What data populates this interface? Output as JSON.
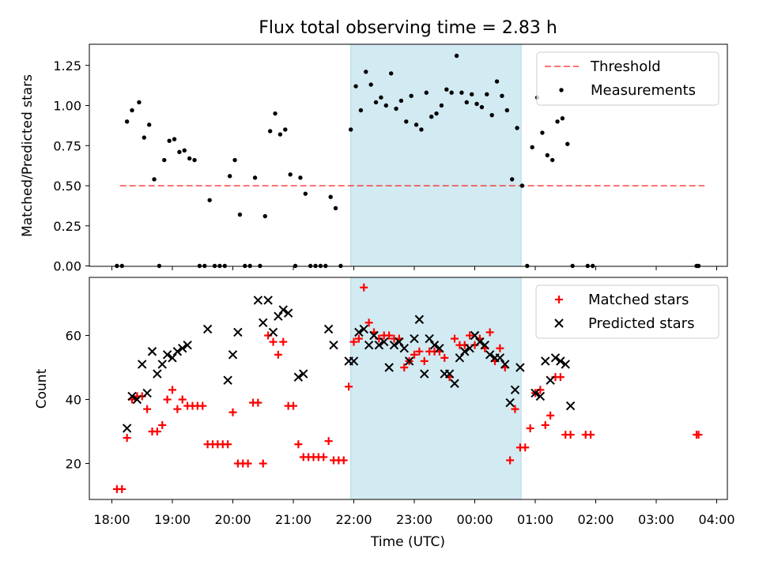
{
  "title": "Flux total observing time = 2.83 h",
  "colors": {
    "shade": "#add8e6",
    "threshold": "#ff0000",
    "measurement": "#000000",
    "matched": "#ff0000",
    "predicted": "#000000"
  },
  "chart_data": [
    {
      "type": "scatter",
      "xlabel": "",
      "ylabel": "Matched/Predicted stars",
      "ylim": [
        0,
        1.38
      ],
      "yticks": [
        "0.00",
        "0.25",
        "0.50",
        "0.75",
        "1.00",
        "1.25"
      ],
      "shaded_region": {
        "start": "21:57",
        "end": "00:46"
      },
      "legend": {
        "position": "top-right",
        "threshold_label": "Threshold",
        "measurements_label": "Measurements"
      },
      "threshold": {
        "value": 0.5,
        "x_start": "18:08",
        "x_end": "03:48"
      },
      "series": [
        {
          "name": "Measurements",
          "points": [
            [
              "18:05",
              0
            ],
            [
              "18:10",
              0
            ],
            [
              "18:15",
              0.9
            ],
            [
              "18:20",
              0.97
            ],
            [
              "18:27",
              1.02
            ],
            [
              "18:32",
              0.8
            ],
            [
              "18:37",
              0.88
            ],
            [
              "18:42",
              0.54
            ],
            [
              "18:47",
              0
            ],
            [
              "18:52",
              0.66
            ],
            [
              "18:57",
              0.78
            ],
            [
              "19:02",
              0.79
            ],
            [
              "19:07",
              0.71
            ],
            [
              "19:12",
              0.72
            ],
            [
              "19:17",
              0.67
            ],
            [
              "19:22",
              0.66
            ],
            [
              "19:27",
              0
            ],
            [
              "19:32",
              0
            ],
            [
              "19:37",
              0.41
            ],
            [
              "19:42",
              0
            ],
            [
              "19:47",
              0
            ],
            [
              "19:52",
              0
            ],
            [
              "19:57",
              0.56
            ],
            [
              "20:02",
              0.66
            ],
            [
              "20:07",
              0.32
            ],
            [
              "20:12",
              0
            ],
            [
              "20:17",
              0
            ],
            [
              "20:22",
              0.55
            ],
            [
              "20:27",
              0
            ],
            [
              "20:32",
              0.31
            ],
            [
              "20:37",
              0.84
            ],
            [
              "20:42",
              0.95
            ],
            [
              "20:47",
              0.82
            ],
            [
              "20:52",
              0.85
            ],
            [
              "20:57",
              0.57
            ],
            [
              "21:02",
              0
            ],
            [
              "21:07",
              0.55
            ],
            [
              "21:12",
              0.45
            ],
            [
              "21:17",
              0
            ],
            [
              "21:22",
              0
            ],
            [
              "21:27",
              0
            ],
            [
              "21:32",
              0
            ],
            [
              "21:37",
              0.43
            ],
            [
              "21:42",
              0.36
            ],
            [
              "21:47",
              0
            ],
            [
              "21:57",
              0.85
            ],
            [
              "22:02",
              1.12
            ],
            [
              "22:07",
              0.97
            ],
            [
              "22:12",
              1.21
            ],
            [
              "22:17",
              1.13
            ],
            [
              "22:22",
              1.02
            ],
            [
              "22:27",
              1.05
            ],
            [
              "22:32",
              1.0
            ],
            [
              "22:37",
              1.2
            ],
            [
              "22:42",
              0.98
            ],
            [
              "22:47",
              1.03
            ],
            [
              "22:52",
              0.9
            ],
            [
              "22:57",
              1.06
            ],
            [
              "23:02",
              0.88
            ],
            [
              "23:07",
              0.85
            ],
            [
              "23:12",
              1.08
            ],
            [
              "23:17",
              0.93
            ],
            [
              "23:22",
              0.95
            ],
            [
              "23:27",
              1.0
            ],
            [
              "23:32",
              1.1
            ],
            [
              "23:37",
              1.08
            ],
            [
              "23:42",
              1.31
            ],
            [
              "23:47",
              1.08
            ],
            [
              "23:52",
              1.02
            ],
            [
              "23:57",
              1.07
            ],
            [
              "00:02",
              1.01
            ],
            [
              "00:07",
              0.99
            ],
            [
              "00:12",
              1.07
            ],
            [
              "00:17",
              0.94
            ],
            [
              "00:22",
              1.15
            ],
            [
              "00:27",
              1.06
            ],
            [
              "00:32",
              0.97
            ],
            [
              "00:37",
              0.54
            ],
            [
              "00:42",
              0.86
            ],
            [
              "00:47",
              0.5
            ],
            [
              "00:52",
              0
            ],
            [
              "00:57",
              0.74
            ],
            [
              "01:02",
              1.05
            ],
            [
              "01:07",
              0.83
            ],
            [
              "01:12",
              0.69
            ],
            [
              "01:17",
              0.66
            ],
            [
              "01:22",
              0.9
            ],
            [
              "01:27",
              0.92
            ],
            [
              "01:32",
              0.76
            ],
            [
              "01:37",
              0
            ],
            [
              "01:52",
              0
            ],
            [
              "01:57",
              0
            ],
            [
              "03:40",
              0
            ],
            [
              "03:42",
              0
            ]
          ]
        }
      ]
    },
    {
      "type": "scatter",
      "xlabel": "Time (UTC)",
      "ylabel": "Count",
      "ylim": [
        8.5,
        77
      ],
      "yticks": [
        "20",
        "40",
        "60"
      ],
      "xticks": [
        "18:00",
        "19:00",
        "20:00",
        "21:00",
        "22:00",
        "23:00",
        "00:00",
        "01:00",
        "02:00",
        "03:00",
        "04:00"
      ],
      "legend": {
        "position": "top-right"
      },
      "series": [
        {
          "name": "Matched stars",
          "points": [
            [
              "18:05",
              12
            ],
            [
              "18:10",
              12
            ],
            [
              "18:15",
              28
            ],
            [
              "18:20",
              40
            ],
            [
              "18:25",
              41
            ],
            [
              "18:30",
              41
            ],
            [
              "18:35",
              37
            ],
            [
              "18:40",
              30
            ],
            [
              "18:45",
              30
            ],
            [
              "18:50",
              32
            ],
            [
              "18:55",
              40
            ],
            [
              "19:00",
              43
            ],
            [
              "19:05",
              37
            ],
            [
              "19:10",
              40
            ],
            [
              "19:15",
              38
            ],
            [
              "19:20",
              38
            ],
            [
              "19:25",
              38
            ],
            [
              "19:30",
              38
            ],
            [
              "19:35",
              26
            ],
            [
              "19:40",
              26
            ],
            [
              "19:45",
              26
            ],
            [
              "19:50",
              26
            ],
            [
              "19:55",
              26
            ],
            [
              "20:00",
              36
            ],
            [
              "20:05",
              20
            ],
            [
              "20:10",
              20
            ],
            [
              "20:15",
              20
            ],
            [
              "20:20",
              39
            ],
            [
              "20:25",
              39
            ],
            [
              "20:30",
              20
            ],
            [
              "20:35",
              60
            ],
            [
              "20:40",
              58
            ],
            [
              "20:45",
              54
            ],
            [
              "20:50",
              58
            ],
            [
              "20:55",
              38
            ],
            [
              "21:00",
              38
            ],
            [
              "21:05",
              26
            ],
            [
              "21:10",
              22
            ],
            [
              "21:15",
              22
            ],
            [
              "21:20",
              22
            ],
            [
              "21:25",
              22
            ],
            [
              "21:30",
              22
            ],
            [
              "21:35",
              27
            ],
            [
              "21:40",
              21
            ],
            [
              "21:45",
              21
            ],
            [
              "21:50",
              21
            ],
            [
              "21:55",
              44
            ],
            [
              "22:00",
              58
            ],
            [
              "22:05",
              59
            ],
            [
              "22:10",
              75
            ],
            [
              "22:15",
              64
            ],
            [
              "22:20",
              61
            ],
            [
              "22:25",
              59
            ],
            [
              "22:30",
              60
            ],
            [
              "22:35",
              60
            ],
            [
              "22:40",
              59
            ],
            [
              "22:45",
              59
            ],
            [
              "22:50",
              50
            ],
            [
              "22:55",
              52
            ],
            [
              "23:00",
              54
            ],
            [
              "23:05",
              55
            ],
            [
              "23:10",
              52
            ],
            [
              "23:15",
              55
            ],
            [
              "23:20",
              55
            ],
            [
              "23:25",
              55
            ],
            [
              "23:30",
              53
            ],
            [
              "23:35",
              47
            ],
            [
              "23:40",
              59
            ],
            [
              "23:45",
              57
            ],
            [
              "23:50",
              57
            ],
            [
              "23:55",
              60
            ],
            [
              "00:00",
              57
            ],
            [
              "00:05",
              59
            ],
            [
              "00:10",
              56
            ],
            [
              "00:15",
              61
            ],
            [
              "00:20",
              52
            ],
            [
              "00:25",
              56
            ],
            [
              "00:30",
              50
            ],
            [
              "00:35",
              21
            ],
            [
              "00:40",
              37
            ],
            [
              "00:45",
              25
            ],
            [
              "00:50",
              25
            ],
            [
              "00:55",
              31
            ],
            [
              "01:00",
              42
            ],
            [
              "01:05",
              43
            ],
            [
              "01:10",
              32
            ],
            [
              "01:15",
              35
            ],
            [
              "01:20",
              47
            ],
            [
              "01:25",
              47
            ],
            [
              "01:30",
              29
            ],
            [
              "01:35",
              29
            ],
            [
              "01:50",
              29
            ],
            [
              "01:55",
              29
            ],
            [
              "03:40",
              29
            ],
            [
              "03:42",
              29
            ]
          ]
        },
        {
          "name": "Predicted stars",
          "points": [
            [
              "18:15",
              31
            ],
            [
              "18:20",
              41
            ],
            [
              "18:25",
              40
            ],
            [
              "18:30",
              51
            ],
            [
              "18:35",
              42
            ],
            [
              "18:40",
              55
            ],
            [
              "18:45",
              48
            ],
            [
              "18:50",
              51
            ],
            [
              "18:55",
              54
            ],
            [
              "19:00",
              53
            ],
            [
              "19:05",
              55
            ],
            [
              "19:10",
              56
            ],
            [
              "19:15",
              57
            ],
            [
              "19:35",
              62
            ],
            [
              "19:55",
              46
            ],
            [
              "20:00",
              54
            ],
            [
              "20:05",
              61
            ],
            [
              "20:25",
              71
            ],
            [
              "20:30",
              64
            ],
            [
              "20:35",
              71
            ],
            [
              "20:40",
              61
            ],
            [
              "20:45",
              66
            ],
            [
              "20:50",
              68
            ],
            [
              "20:55",
              67
            ],
            [
              "21:05",
              47
            ],
            [
              "21:10",
              48
            ],
            [
              "21:35",
              62
            ],
            [
              "21:40",
              57
            ],
            [
              "21:55",
              52
            ],
            [
              "22:00",
              52
            ],
            [
              "22:05",
              61
            ],
            [
              "22:10",
              62
            ],
            [
              "22:15",
              57
            ],
            [
              "22:20",
              60
            ],
            [
              "22:25",
              57
            ],
            [
              "22:30",
              58
            ],
            [
              "22:35",
              50
            ],
            [
              "22:40",
              57
            ],
            [
              "22:45",
              58
            ],
            [
              "22:50",
              56
            ],
            [
              "22:55",
              52
            ],
            [
              "23:00",
              59
            ],
            [
              "23:05",
              65
            ],
            [
              "23:10",
              48
            ],
            [
              "23:15",
              59
            ],
            [
              "23:20",
              57
            ],
            [
              "23:25",
              56
            ],
            [
              "23:30",
              48
            ],
            [
              "23:35",
              48
            ],
            [
              "23:40",
              45
            ],
            [
              "23:45",
              53
            ],
            [
              "23:50",
              55
            ],
            [
              "23:55",
              56
            ],
            [
              "00:00",
              60
            ],
            [
              "00:05",
              58
            ],
            [
              "00:10",
              57
            ],
            [
              "00:15",
              54
            ],
            [
              "00:20",
              53
            ],
            [
              "00:25",
              53
            ],
            [
              "00:30",
              51
            ],
            [
              "00:35",
              39
            ],
            [
              "00:40",
              43
            ],
            [
              "00:45",
              50
            ],
            [
              "01:00",
              42
            ],
            [
              "01:05",
              41
            ],
            [
              "01:10",
              52
            ],
            [
              "01:15",
              46
            ],
            [
              "01:20",
              53
            ],
            [
              "01:25",
              52
            ],
            [
              "01:30",
              51
            ],
            [
              "01:35",
              38
            ]
          ]
        }
      ]
    }
  ]
}
